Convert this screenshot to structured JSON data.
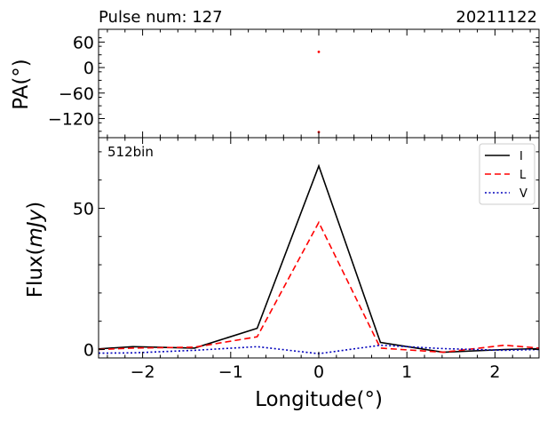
{
  "header": {
    "left": "Pulse num: 127",
    "right": "20211122"
  },
  "chart_data": [
    {
      "type": "scatter",
      "panel": "top",
      "ylabel": "PA(°)",
      "ylim": [
        -165,
        90
      ],
      "yticks": [
        60,
        0,
        -60,
        -120
      ],
      "ytick_labels": [
        "60",
        "0",
        "−60",
        "−120"
      ],
      "series": [
        {
          "color": "#ff0000",
          "points": [
            [
              0.0,
              37
            ],
            [
              0.0,
              -152
            ]
          ]
        }
      ]
    },
    {
      "type": "line",
      "panel": "bottom",
      "annotation": "512bin",
      "xlabel": "Longitude(°)",
      "ylabel_text": "Flux(",
      "ylabel_unit": "mJy",
      "ylabel_close": ")",
      "xlim": [
        -2.5,
        2.5
      ],
      "ylim": [
        -3,
        75
      ],
      "xticks": [
        -2,
        -1,
        0,
        1,
        2
      ],
      "xtick_labels": [
        "−2",
        "−1",
        "0",
        "1",
        "2"
      ],
      "yticks": [
        0,
        50
      ],
      "ytick_labels": [
        "0",
        "50"
      ],
      "legend_position": "top-right",
      "x": [
        -2.5,
        -2.11,
        -1.41,
        -0.7,
        0.0,
        0.7,
        1.41,
        2.11,
        2.5
      ],
      "series": [
        {
          "name": "I",
          "color": "#000000",
          "dash": "solid",
          "values": [
            0.2,
            1.0,
            0.5,
            7.5,
            65.0,
            2.5,
            -1.0,
            0.0,
            0.3
          ]
        },
        {
          "name": "L",
          "color": "#ff0000",
          "dash": "dashed",
          "values": [
            0.0,
            0.5,
            0.8,
            4.5,
            45.0,
            0.5,
            -1.0,
            1.5,
            0.5
          ]
        },
        {
          "name": "V",
          "color": "#0000bb",
          "dash": "dotted",
          "values": [
            -1.3,
            -1.2,
            -0.3,
            1.0,
            -1.5,
            1.5,
            0.3,
            -0.3,
            0.0
          ]
        }
      ]
    }
  ]
}
